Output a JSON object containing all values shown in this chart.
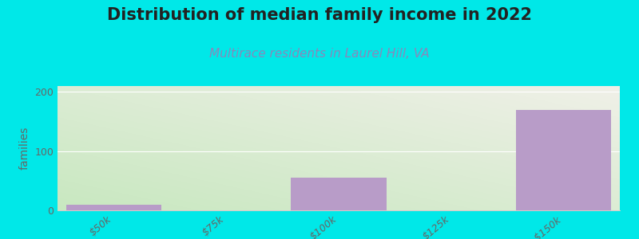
{
  "title": "Distribution of median family income in 2022",
  "subtitle": "Multirace residents in Laurel Hill, VA",
  "ylabel": "families",
  "categories": [
    "$50k",
    "$75k",
    "$100k",
    "$125k",
    ">$150k"
  ],
  "values": [
    10,
    0,
    55,
    0,
    170
  ],
  "bar_color": "#b89cc8",
  "background_color": "#00e8e8",
  "plot_bg_color_topleft": "#c8e8c0",
  "plot_bg_color_bottomright": "#f0f0e8",
  "ylim": [
    0,
    210
  ],
  "yticks": [
    0,
    100,
    200
  ],
  "grid_color": "#e0e0e0",
  "title_fontsize": 15,
  "subtitle_fontsize": 11,
  "subtitle_color": "#8888bb",
  "ylabel_fontsize": 10,
  "tick_label_fontsize": 9,
  "bar_width": 0.85
}
